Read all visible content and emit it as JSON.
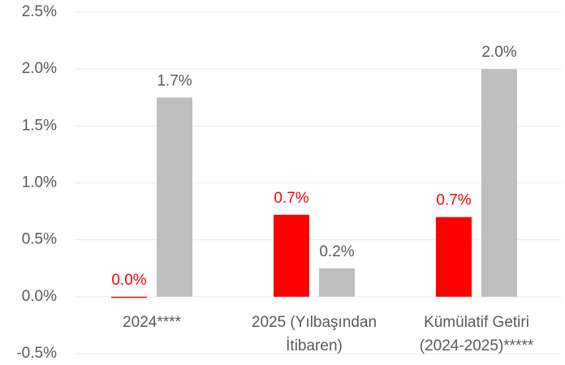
{
  "chart_data": {
    "type": "bar",
    "categories": [
      [
        "2024****"
      ],
      [
        "2025 (Yılbaşından",
        "İtibaren)"
      ],
      [
        "Kümülatif Getiri",
        "(2024-2025)*****"
      ]
    ],
    "series": [
      {
        "color": "#ff0000",
        "values": [
          -0.01,
          0.72,
          0.7
        ],
        "value_labels": [
          "0.0%",
          "0.7%",
          "0.7%"
        ],
        "label_color": "#ff0000"
      },
      {
        "color": "#bfbfbf",
        "values": [
          1.75,
          0.25,
          2.0
        ],
        "value_labels": [
          "1.7%",
          "0.2%",
          "2.0%"
        ],
        "label_color": "#595959"
      }
    ],
    "ylim": [
      -0.5,
      2.5
    ],
    "yticks": [
      {
        "value": -0.5,
        "label": "-0.5%"
      },
      {
        "value": 0,
        "label": "0.0%"
      },
      {
        "value": 0.5,
        "label": "0.5%"
      },
      {
        "value": 1,
        "label": "1.0%"
      },
      {
        "value": 1.5,
        "label": "1.5%"
      },
      {
        "value": 2,
        "label": "2.0%"
      },
      {
        "value": 2.5,
        "label": "2.5%"
      }
    ],
    "grid": true
  }
}
